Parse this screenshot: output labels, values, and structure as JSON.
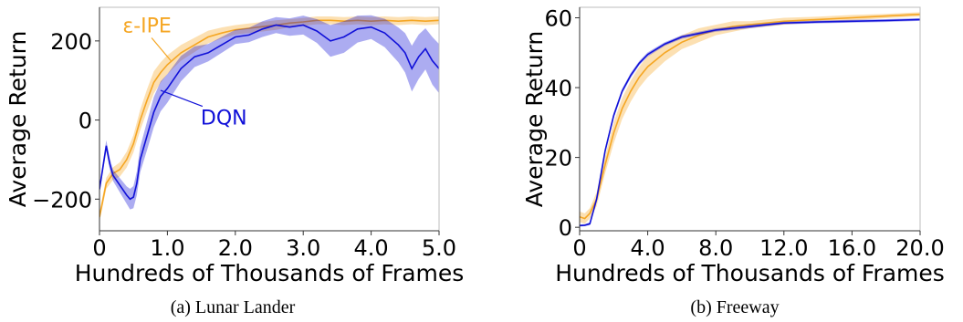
{
  "colors": {
    "ipe": "#f5a623",
    "dqn": "#1010d8"
  },
  "chart_data": [
    {
      "type": "line",
      "caption": "(a) Lunar Lander",
      "xlabel": "Hundreds of Thousands of Frames",
      "ylabel": "Average Return",
      "xlim": [
        0,
        5
      ],
      "ylim": [
        -280,
        285
      ],
      "xticks": [
        0,
        1,
        2,
        3,
        4,
        5
      ],
      "xtick_labels": [
        "0",
        "1.0",
        "2.0",
        "3.0",
        "4.0",
        "5.0"
      ],
      "yticks": [
        -200,
        0,
        200
      ],
      "ytick_labels": [
        "−200",
        "0",
        "200"
      ],
      "grid": false,
      "annotations": [
        {
          "text": "ε-IPE",
          "series": "ε-IPE",
          "x": 0.7,
          "y": 240
        },
        {
          "text": "DQN",
          "series": "DQN",
          "x": 1.45,
          "y": 0
        }
      ],
      "series": [
        {
          "name": "ε-IPE",
          "x": [
            0,
            0.1,
            0.2,
            0.3,
            0.4,
            0.5,
            0.6,
            0.7,
            0.8,
            0.9,
            1.0,
            1.2,
            1.4,
            1.6,
            1.8,
            2.0,
            2.2,
            2.4,
            2.6,
            2.8,
            3.0,
            3.2,
            3.4,
            3.6,
            3.8,
            4.0,
            4.2,
            4.4,
            4.6,
            4.8,
            5.0
          ],
          "y": [
            -245,
            -160,
            -135,
            -125,
            -100,
            -60,
            0,
            50,
            95,
            120,
            140,
            170,
            190,
            210,
            220,
            228,
            232,
            236,
            240,
            245,
            248,
            252,
            252,
            250,
            252,
            250,
            252,
            250,
            252,
            250,
            252
          ],
          "band": [
            12,
            14,
            16,
            18,
            20,
            22,
            26,
            28,
            28,
            26,
            24,
            20,
            18,
            16,
            14,
            12,
            12,
            12,
            12,
            10,
            10,
            10,
            10,
            10,
            10,
            10,
            10,
            10,
            10,
            10,
            10
          ]
        },
        {
          "name": "DQN",
          "x": [
            0,
            0.05,
            0.1,
            0.15,
            0.2,
            0.3,
            0.4,
            0.45,
            0.5,
            0.55,
            0.6,
            0.7,
            0.8,
            0.9,
            1.0,
            1.2,
            1.4,
            1.6,
            1.8,
            2.0,
            2.2,
            2.4,
            2.6,
            2.8,
            3.0,
            3.2,
            3.4,
            3.6,
            3.8,
            4.0,
            4.2,
            4.3,
            4.4,
            4.5,
            4.6,
            4.7,
            4.8,
            4.9,
            5.0
          ],
          "y": [
            -175,
            -120,
            -65,
            -110,
            -140,
            -165,
            -190,
            -200,
            -195,
            -160,
            -100,
            -40,
            20,
            60,
            80,
            130,
            160,
            170,
            190,
            210,
            215,
            230,
            240,
            235,
            240,
            225,
            200,
            210,
            230,
            235,
            220,
            205,
            190,
            170,
            130,
            160,
            180,
            150,
            130
          ],
          "band": [
            10,
            12,
            14,
            14,
            14,
            18,
            22,
            26,
            28,
            30,
            32,
            36,
            38,
            38,
            36,
            32,
            26,
            22,
            20,
            18,
            18,
            20,
            20,
            22,
            24,
            30,
            40,
            40,
            34,
            30,
            36,
            40,
            44,
            50,
            58,
            56,
            52,
            60,
            62
          ]
        }
      ]
    },
    {
      "type": "line",
      "caption": "(b) Freeway",
      "xlabel": "Hundreds of Thousands of Frames",
      "ylabel": "Average Return",
      "xlim": [
        0,
        20
      ],
      "ylim": [
        -1,
        63
      ],
      "xticks": [
        0,
        4,
        8,
        12,
        16,
        20
      ],
      "xtick_labels": [
        "0",
        "4.0",
        "8.0",
        "12.0",
        "16.0",
        "20.0"
      ],
      "yticks": [
        0,
        20,
        40,
        60
      ],
      "ytick_labels": [
        "0",
        "20",
        "40",
        "60"
      ],
      "grid": false,
      "series": [
        {
          "name": "ε-IPE",
          "x": [
            0,
            0.3,
            0.6,
            1.0,
            1.5,
            2.0,
            2.5,
            3.0,
            3.5,
            4.0,
            5.0,
            6.0,
            7.0,
            8.0,
            9.0,
            10.0,
            11.0,
            12.0,
            14.0,
            16.0,
            18.0,
            20.0
          ],
          "y": [
            3,
            2.5,
            4,
            8,
            18,
            27,
            34,
            39,
            43,
            46,
            50,
            53,
            55,
            56.5,
            57.5,
            58,
            58.5,
            59,
            59.5,
            60,
            60.5,
            61
          ],
          "band": [
            1.5,
            1.5,
            1.5,
            2,
            2.5,
            3,
            3,
            3,
            3,
            3,
            2.5,
            2,
            2,
            1.5,
            1.5,
            1,
            1,
            1,
            0.8,
            0.8,
            0.6,
            0.6
          ]
        },
        {
          "name": "DQN",
          "x": [
            0,
            0.3,
            0.6,
            1.0,
            1.5,
            2.0,
            2.5,
            3.0,
            3.5,
            4.0,
            5.0,
            6.0,
            7.0,
            8.0,
            9.0,
            10.0,
            11.0,
            12.0,
            14.0,
            16.0,
            18.0,
            20.0
          ],
          "y": [
            0.5,
            0.6,
            1,
            8,
            22,
            32,
            39,
            43.5,
            47,
            49.5,
            52.5,
            54.5,
            55.5,
            56.5,
            57,
            57.5,
            58,
            58.5,
            58.8,
            59,
            59.2,
            59.5
          ],
          "band": [
            0.3,
            0.3,
            0.4,
            0.6,
            0.8,
            0.8,
            0.7,
            0.7,
            0.6,
            0.6,
            0.5,
            0.5,
            0.5,
            0.5,
            0.5,
            0.5,
            0.4,
            0.4,
            0.4,
            0.4,
            0.4,
            0.4
          ]
        }
      ]
    }
  ]
}
